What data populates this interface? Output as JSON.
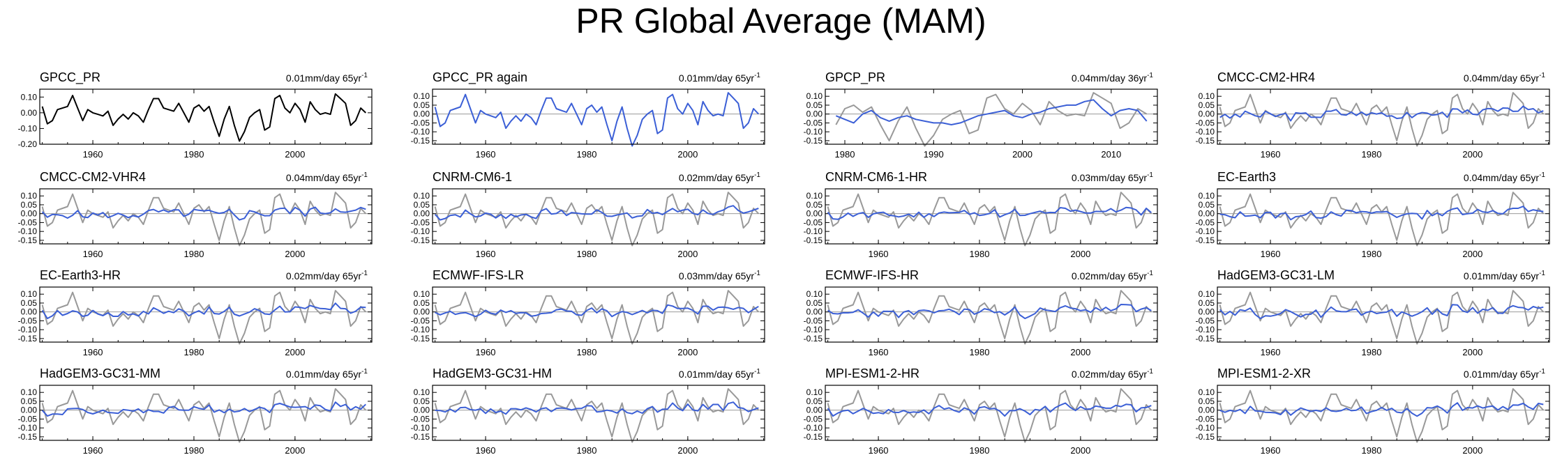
{
  "figure": {
    "title": "PR Global Average (MAM)",
    "trend_unit": "mm/day",
    "trend_suffix": "yr",
    "trend_exponent": "-1"
  },
  "colors": {
    "obs": "#000000",
    "model": "#3b5fd6",
    "reference": "#999999",
    "zero": "#999999"
  },
  "chart_data": {
    "type": "line",
    "years": [
      1950,
      1951,
      1952,
      1953,
      1954,
      1955,
      1956,
      1957,
      1958,
      1959,
      1960,
      1961,
      1962,
      1963,
      1964,
      1965,
      1966,
      1967,
      1968,
      1969,
      1970,
      1971,
      1972,
      1973,
      1974,
      1975,
      1976,
      1977,
      1978,
      1979,
      1980,
      1981,
      1982,
      1983,
      1984,
      1985,
      1986,
      1987,
      1988,
      1989,
      1990,
      1991,
      1992,
      1993,
      1994,
      1995,
      1996,
      1997,
      1998,
      1999,
      2000,
      2001,
      2002,
      2003,
      2004,
      2005,
      2006,
      2007,
      2008,
      2009,
      2010,
      2011,
      2012,
      2013,
      2014
    ],
    "gpcc": [
      0.04,
      -0.07,
      -0.05,
      0.02,
      0.03,
      0.04,
      0.11,
      0.03,
      -0.05,
      0.02,
      0.0,
      -0.01,
      -0.02,
      0.01,
      -0.08,
      -0.04,
      -0.01,
      -0.04,
      0.0,
      -0.02,
      -0.06,
      0.02,
      0.09,
      0.09,
      0.03,
      0.02,
      0.01,
      0.06,
      0.0,
      -0.06,
      0.03,
      0.05,
      0.01,
      0.04,
      -0.06,
      -0.15,
      -0.04,
      0.04,
      -0.08,
      -0.18,
      -0.12,
      -0.03,
      0.0,
      0.02,
      -0.11,
      -0.09,
      0.09,
      0.11,
      0.03,
      0.0,
      0.06,
      0.02,
      -0.06,
      0.07,
      0.02,
      -0.01,
      0.0,
      -0.01,
      0.12,
      0.09,
      0.06,
      -0.08,
      -0.05,
      0.03,
      0.0
    ],
    "gpcp_years": [
      1979,
      1980,
      1981,
      1982,
      1983,
      1984,
      1985,
      1986,
      1987,
      1988,
      1989,
      1990,
      1991,
      1992,
      1993,
      1994,
      1995,
      1996,
      1997,
      1998,
      1999,
      2000,
      2001,
      2002,
      2003,
      2004,
      2005,
      2006,
      2007,
      2008,
      2009,
      2010,
      2011,
      2012,
      2013,
      2014
    ],
    "gpcp": [
      -0.01,
      -0.03,
      -0.05,
      0.0,
      0.02,
      -0.02,
      -0.04,
      -0.02,
      -0.01,
      -0.03,
      -0.04,
      -0.05,
      -0.05,
      -0.06,
      -0.05,
      -0.03,
      -0.01,
      0.0,
      0.01,
      0.02,
      -0.01,
      -0.02,
      0.0,
      0.01,
      0.03,
      0.04,
      0.05,
      0.05,
      0.07,
      0.08,
      0.03,
      -0.01,
      0.02,
      0.03,
      0.02,
      -0.04
    ],
    "panels": [
      {
        "title": "GPCC_PR",
        "trend": "0.01mm/day 65yr",
        "ylim": [
          -0.2,
          0.15
        ],
        "yticks": [
          "0.10",
          "0.00",
          "-0.10",
          "-0.20"
        ],
        "xticks": [
          1960,
          1980,
          2000
        ],
        "obs_only": true
      },
      {
        "title": "GPCC_PR again",
        "trend": "0.01mm/day 65yr",
        "ylim": [
          -0.17,
          0.14
        ],
        "yticks": [
          "0.10",
          "0.05",
          "0.00",
          "-0.05",
          "-0.10",
          "-0.15"
        ],
        "xticks": [
          1960,
          1980,
          2000
        ],
        "model_is_obs": true
      },
      {
        "title": "GPCP_PR",
        "trend": "0.04mm/day 36yr",
        "ylim": [
          -0.17,
          0.14
        ],
        "yticks": [
          "0.10",
          "0.05",
          "0.00",
          "-0.05",
          "-0.10",
          "-0.15"
        ],
        "xticks": [
          1980,
          1990,
          2000,
          2010
        ],
        "gpcp": true
      },
      {
        "title": "CMCC-CM2-HR4",
        "trend": "0.04mm/day 65yr",
        "seed": 3,
        "amp": 0.022
      },
      {
        "title": "CMCC-CM2-VHR4",
        "trend": "0.04mm/day 65yr",
        "seed": 5,
        "amp": 0.022
      },
      {
        "title": "CNRM-CM6-1",
        "trend": "0.02mm/day 65yr",
        "seed": 7,
        "amp": 0.018
      },
      {
        "title": "CNRM-CM6-1-HR",
        "trend": "0.03mm/day 65yr",
        "seed": 11,
        "amp": 0.018
      },
      {
        "title": "EC-Earth3",
        "trend": "0.04mm/day 65yr",
        "seed": 13,
        "amp": 0.02
      },
      {
        "title": "EC-Earth3-HR",
        "trend": "0.02mm/day 65yr",
        "seed": 17,
        "amp": 0.018
      },
      {
        "title": "ECMWF-IFS-LR",
        "trend": "0.03mm/day 65yr",
        "seed": 19,
        "amp": 0.018
      },
      {
        "title": "ECMWF-IFS-HR",
        "trend": "0.02mm/day 65yr",
        "seed": 23,
        "amp": 0.018
      },
      {
        "title": "HadGEM3-GC31-LM",
        "trend": "0.01mm/day 65yr",
        "seed": 29,
        "amp": 0.022
      },
      {
        "title": "HadGEM3-GC31-MM",
        "trend": "0.01mm/day 65yr",
        "seed": 31,
        "amp": 0.02
      },
      {
        "title": "HadGEM3-GC31-HM",
        "trend": "0.01mm/day 65yr",
        "seed": 37,
        "amp": 0.02
      },
      {
        "title": "MPI-ESM1-2-HR",
        "trend": "0.02mm/day 65yr",
        "seed": 41,
        "amp": 0.018
      },
      {
        "title": "MPI-ESM1-2-XR",
        "trend": "0.01mm/day 65yr",
        "seed": 43,
        "amp": 0.018
      }
    ],
    "default_ylim": [
      -0.17,
      0.14
    ],
    "default_yticks": [
      "0.10",
      "0.05",
      "0.00",
      "-0.05",
      "-0.10",
      "-0.15"
    ],
    "default_xticks": [
      1960,
      1980,
      2000
    ],
    "xlim": [
      1949.5,
      2015.2
    ],
    "gpcp_xlim": [
      1977.8,
      2015.2
    ]
  }
}
